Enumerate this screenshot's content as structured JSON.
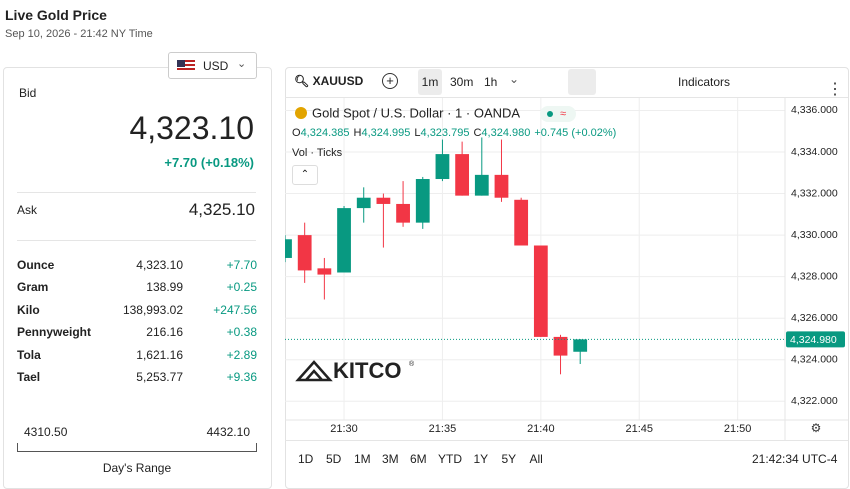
{
  "header": {
    "title": "Live Gold Price",
    "subtitle": "Sep 10, 2026 - 21:42 NY Time"
  },
  "currency": "USD",
  "bid": {
    "label": "Bid",
    "price": "4,323.10",
    "change": "+7.70 (+0.18%)"
  },
  "ask": {
    "label": "Ask",
    "price": "4,325.10"
  },
  "units": [
    [
      "Ounce",
      "4,323.10",
      "+7.70"
    ],
    [
      "Gram",
      "138.99",
      "+0.25"
    ],
    [
      "Kilo",
      "138,993.02",
      "+247.56"
    ],
    [
      "Pennyweight",
      "216.16",
      "+0.38"
    ],
    [
      "Tola",
      "1,621.16",
      "+2.89"
    ],
    [
      "Tael",
      "5,253.77",
      "+9.36"
    ]
  ],
  "day_range": {
    "low": "4310.50",
    "high": "4432.10",
    "label": "Day's Range"
  },
  "toolbar": {
    "symbol": "XAUUSD",
    "intervals": [
      "1m",
      "30m",
      "1h"
    ],
    "indicators": "Indicators"
  },
  "ranges": [
    "1D",
    "5D",
    "1M",
    "3M",
    "6M",
    "YTD",
    "1Y",
    "5Y",
    "All"
  ],
  "clock": "21:42:34 UTC-4",
  "chart_data": {
    "type": "candlestick",
    "title": "Gold Spot / U.S. Dollar · 1 · OANDA",
    "ohlc_labels": [
      {
        "key": "O",
        "value": "4,324.385"
      },
      {
        "key": "H",
        "value": "4,324.995"
      },
      {
        "key": "L",
        "value": "4,323.795"
      },
      {
        "key": "C",
        "value": "4,324.980"
      }
    ],
    "change_label": "+0.745 (+0.02%)",
    "volume_label": "Vol · Ticks",
    "watermark": "KITCO",
    "x": [
      "21:27",
      "21:28",
      "21:29",
      "21:30",
      "21:31",
      "21:32",
      "21:33",
      "21:34",
      "21:35",
      "21:36",
      "21:37",
      "21:38",
      "21:39",
      "21:40",
      "21:41",
      "21:42"
    ],
    "open": [
      4328.9,
      4330.0,
      4328.4,
      4328.2,
      4331.3,
      4331.8,
      4331.5,
      4330.6,
      4332.7,
      4333.9,
      4331.9,
      4332.9,
      4331.7,
      4329.5,
      4325.1,
      4324.385
    ],
    "high": [
      4330.0,
      4330.6,
      4328.9,
      4331.4,
      4332.3,
      4332.0,
      4332.6,
      4332.8,
      4334.6,
      4334.5,
      4334.7,
      4334.6,
      4331.8,
      4329.5,
      4325.2,
      4324.995
    ],
    "low": [
      4328.7,
      4327.7,
      4326.9,
      4328.2,
      4330.6,
      4329.4,
      4330.4,
      4330.3,
      4332.6,
      4331.9,
      4331.9,
      4331.6,
      4329.5,
      4325.1,
      4323.3,
      4323.795
    ],
    "close": [
      4329.8,
      4328.3,
      4328.1,
      4331.3,
      4331.8,
      4331.5,
      4330.6,
      4332.7,
      4333.9,
      4331.9,
      4332.9,
      4331.8,
      4329.5,
      4325.1,
      4324.2,
      4324.98
    ],
    "up_color": "#089981",
    "down_color": "#f23645",
    "xlim": [
      "21:27",
      "21:52"
    ],
    "xticks": [
      "21:30",
      "21:35",
      "21:40",
      "21:45",
      "21:50"
    ],
    "ylim": [
      4321.1,
      4336.6
    ],
    "yticks": [
      {
        "value": 4322,
        "label": "4,322.000"
      },
      {
        "value": 4324,
        "label": "4,324.000"
      },
      {
        "value": 4326,
        "label": "4,326.000"
      },
      {
        "value": 4328,
        "label": "4,328.000"
      },
      {
        "value": 4330,
        "label": "4,330.000"
      },
      {
        "value": 4332,
        "label": "4,332.000"
      },
      {
        "value": 4334,
        "label": "4,334.000"
      },
      {
        "value": 4336,
        "label": "4,336.000"
      }
    ],
    "price_line": {
      "value": 4324.98,
      "label": "4,324.980"
    },
    "grid": true
  }
}
